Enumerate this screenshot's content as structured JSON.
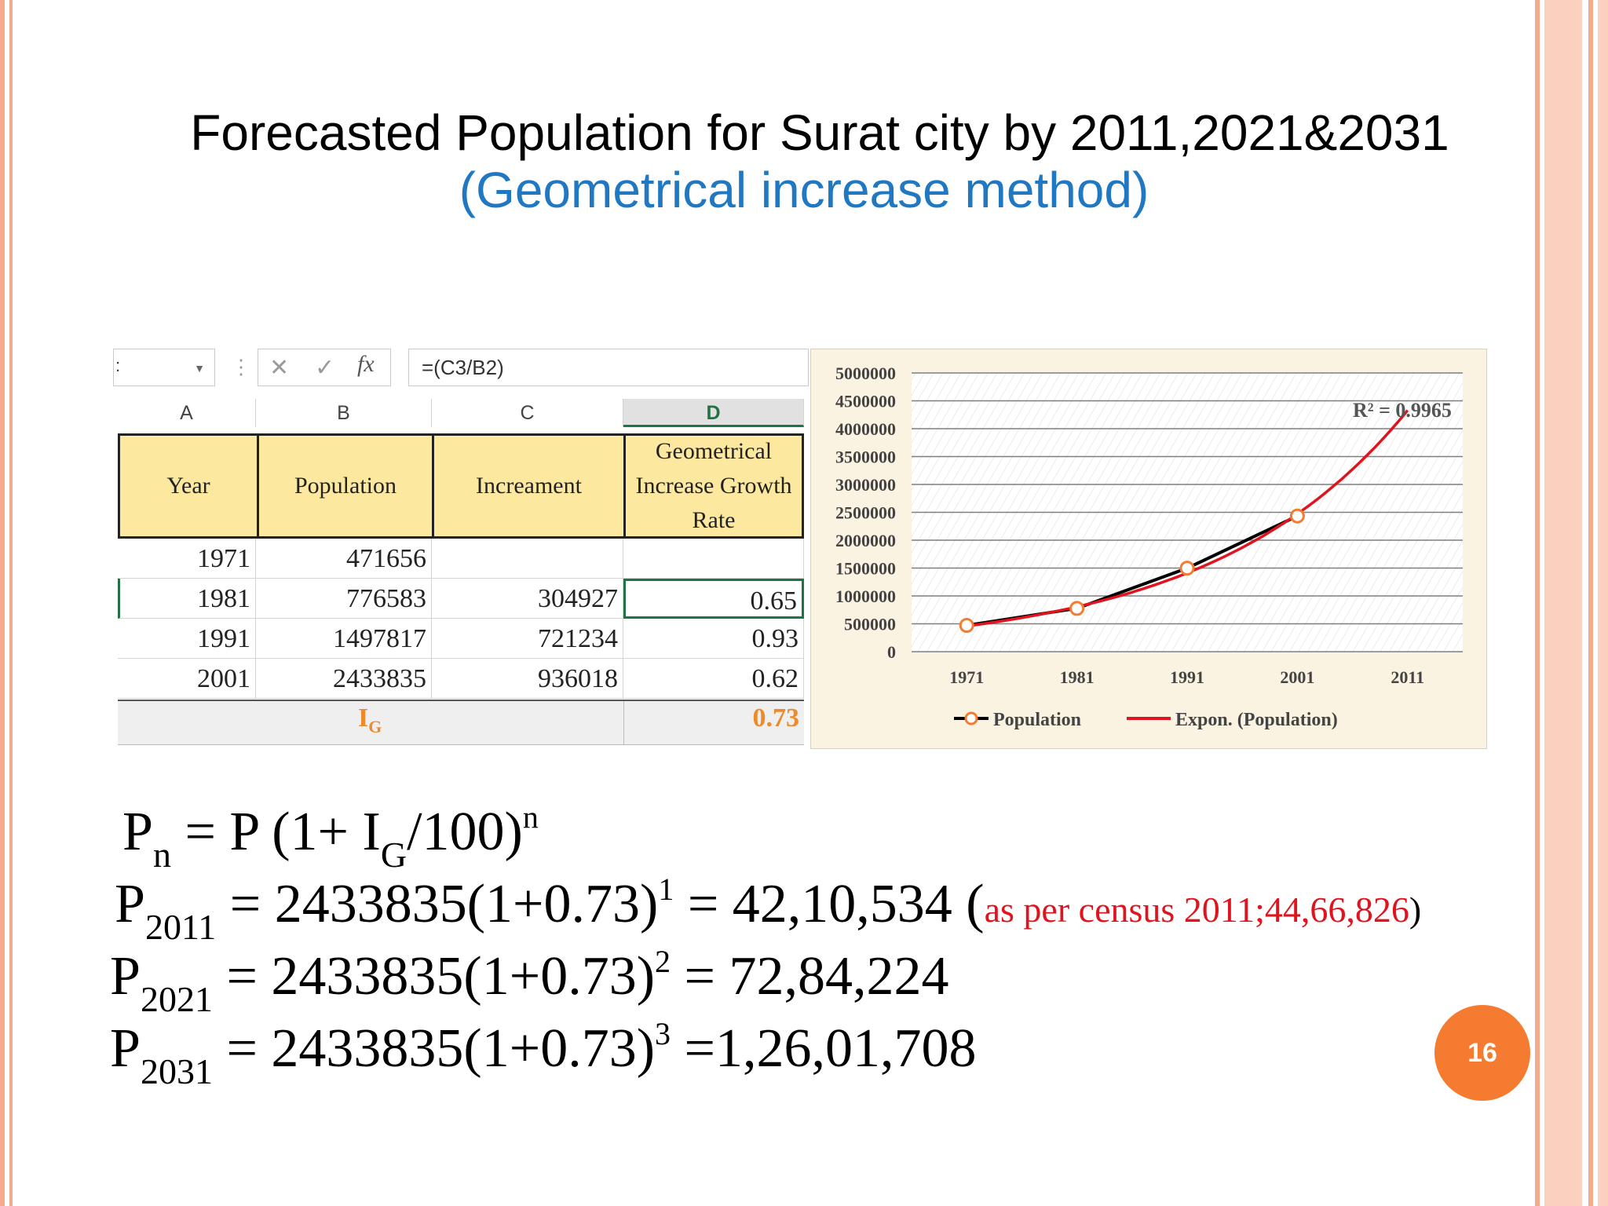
{
  "slide": {
    "title": "Forecasted Population for Surat city by 2011,2021&2031",
    "subtitle": "(Geometrical increase method)",
    "page_number": "16"
  },
  "spreadsheet": {
    "name_box": ":",
    "formula": "=(C3/B2)",
    "columns": [
      "A",
      "B",
      "C",
      "D"
    ],
    "headers": [
      "Year",
      "Population",
      "Increament",
      "Geometrical Increase Growth Rate"
    ],
    "rows": [
      {
        "year": "1971",
        "population": "471656",
        "increment": "",
        "rate": ""
      },
      {
        "year": "1981",
        "population": "776583",
        "increment": "304927",
        "rate": "0.65"
      },
      {
        "year": "1991",
        "population": "1497817",
        "increment": "721234",
        "rate": "0.93"
      },
      {
        "year": "2001",
        "population": "2433835",
        "increment": "936018",
        "rate": "0.62"
      }
    ],
    "summary_label": "I",
    "summary_label_sub": "G",
    "summary_value": "0.73"
  },
  "chart_data": {
    "type": "line",
    "x": [
      "1971",
      "1981",
      "1991",
      "2001",
      "2011"
    ],
    "series": [
      {
        "name": "Population",
        "values": [
          471656,
          776583,
          1497817,
          2433835,
          null
        ],
        "color": "#000000",
        "marker": "circle-orange"
      },
      {
        "name": "Expon. (Population)",
        "values": [
          460000,
          820000,
          1460000,
          2420000,
          4330000
        ],
        "color": "#e0141e",
        "trendline": "exponential"
      }
    ],
    "y_ticks": [
      "0",
      "500000",
      "1000000",
      "1500000",
      "2000000",
      "2500000",
      "3000000",
      "3500000",
      "4000000",
      "4500000",
      "5000000"
    ],
    "ylim": [
      0,
      5000000
    ],
    "annotation": "R² = 0.9965",
    "legend_position": "bottom",
    "grid": true
  },
  "formulas": {
    "general": {
      "lhs": "P",
      "lhs_sub": "n",
      "rhs_a": " = P (1+ I",
      "rhs_sub": "G",
      "rhs_b": "/100)",
      "rhs_sup": "n"
    },
    "p2011": {
      "lhs": "P",
      "lhs_sub": "2011",
      "expr": " = 2433835(1+0.73)",
      "sup": "1",
      "result": " = 42,10,534 (",
      "note": "as per census  2011;44,66,826",
      "close": ")"
    },
    "p2021": {
      "lhs": "P",
      "lhs_sub": "2021",
      "expr": " = 2433835(1+0.73)",
      "sup": "2",
      "result": " = 72,84,224"
    },
    "p2031": {
      "lhs": "P",
      "lhs_sub": "2031",
      "expr": " = 2433835(1+0.73)",
      "sup": "3",
      "result": " =1,26,01,708"
    }
  },
  "colors": {
    "accent_orange": "#f47b30",
    "subtitle_blue": "#1f78c1",
    "header_fill": "#fde8a0",
    "excel_green": "#217346"
  }
}
